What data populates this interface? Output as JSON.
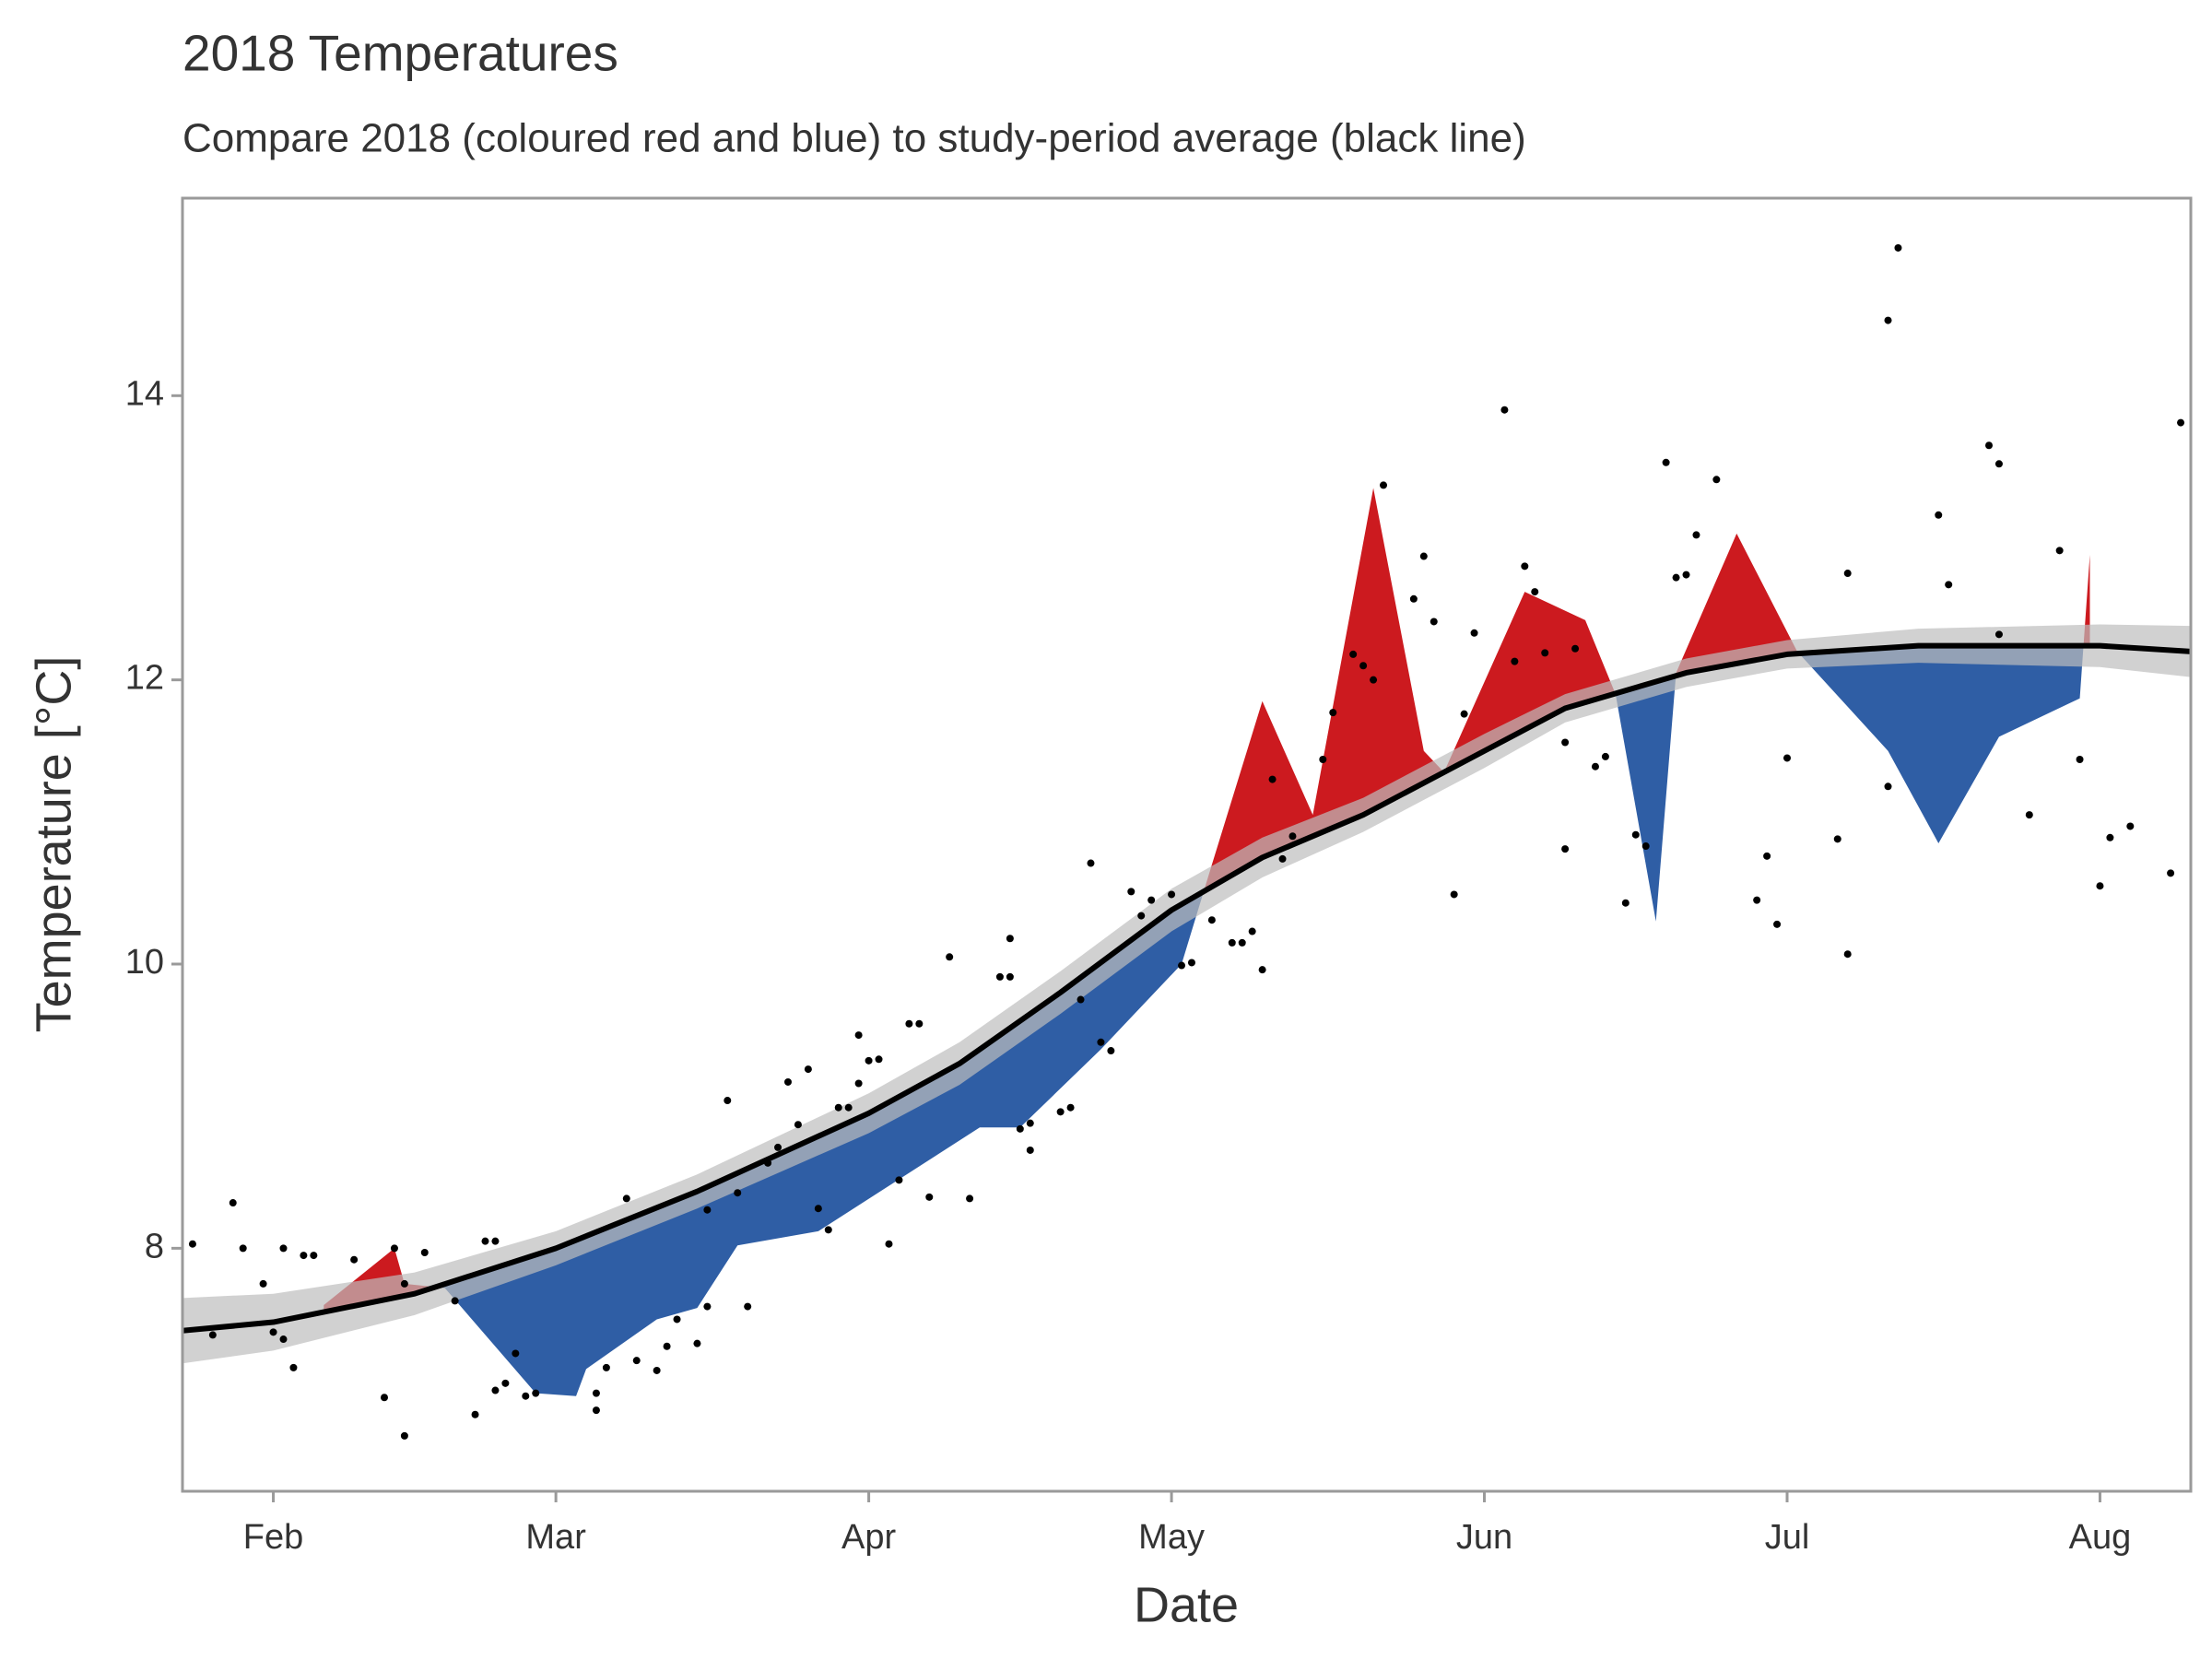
{
  "chart_data": {
    "type": "line",
    "title": "2018 Temperatures",
    "subtitle": "Compare 2018 (coloured red and blue) to study-period average (black line)",
    "x_label": "Date",
    "y_label": "Temperature [°C]",
    "xlim": [
      23,
      222
    ],
    "ylim": [
      6.29,
      15.39
    ],
    "xticks": [
      {
        "value": 32,
        "label": "Feb"
      },
      {
        "value": 60,
        "label": "Mar"
      },
      {
        "value": 91,
        "label": "Apr"
      },
      {
        "value": 121,
        "label": "May"
      },
      {
        "value": 152,
        "label": "Jun"
      },
      {
        "value": 182,
        "label": "Jul"
      },
      {
        "value": 213,
        "label": "Aug"
      }
    ],
    "yticks": [
      8,
      10,
      12,
      14
    ],
    "above_color": "#cc1a1f",
    "below_color": "#2f5ea5",
    "ribbon_color": "#bdbdbd",
    "average": {
      "color": "#000000",
      "x": [
        23,
        32,
        46,
        60,
        74,
        91,
        100,
        110,
        121,
        130,
        140,
        152,
        160,
        172,
        182,
        195,
        213,
        222
      ],
      "values": [
        7.42,
        7.48,
        7.68,
        8.0,
        8.4,
        8.95,
        9.3,
        9.8,
        10.38,
        10.75,
        11.05,
        11.5,
        11.8,
        12.05,
        12.18,
        12.24,
        12.24,
        12.2
      ],
      "lower": [
        7.19,
        7.28,
        7.53,
        7.88,
        8.28,
        8.81,
        9.15,
        9.65,
        10.23,
        10.61,
        10.93,
        11.38,
        11.7,
        11.95,
        12.08,
        12.12,
        12.09,
        12.02
      ],
      "upper": [
        7.65,
        7.68,
        7.83,
        8.12,
        8.52,
        9.09,
        9.45,
        9.95,
        10.53,
        10.89,
        11.17,
        11.62,
        11.9,
        12.15,
        12.28,
        12.36,
        12.39,
        12.38
      ]
    },
    "year_2018": {
      "x": [
        37,
        44,
        45,
        49,
        58,
        62,
        63,
        70,
        74,
        78,
        86,
        102,
        106,
        114,
        122,
        125,
        130,
        135,
        141,
        146,
        148,
        156,
        162,
        165,
        169,
        171,
        177,
        183,
        192,
        197,
        203,
        211,
        212
      ],
      "values": [
        7.6,
        8.0,
        7.75,
        7.72,
        6.98,
        6.96,
        7.15,
        7.5,
        7.58,
        8.02,
        8.12,
        8.85,
        8.85,
        9.4,
        10.0,
        10.7,
        11.85,
        11.05,
        13.35,
        11.5,
        11.35,
        12.62,
        12.42,
        11.9,
        10.3,
        12.05,
        13.03,
        12.2,
        11.5,
        10.85,
        11.6,
        11.87,
        12.88
      ]
    },
    "points": {
      "color": "#000000",
      "x": [
        24,
        26,
        28,
        29,
        31,
        32,
        33,
        33,
        34,
        35,
        36,
        40,
        43,
        44,
        45,
        45,
        47,
        50,
        52,
        53,
        54,
        54,
        55,
        56,
        57,
        58,
        64,
        64,
        65,
        67,
        68,
        70,
        71,
        72,
        74,
        75,
        75,
        77,
        78,
        79,
        81,
        82,
        83,
        84,
        85,
        86,
        87,
        88,
        89,
        90,
        91,
        90,
        92,
        93,
        94,
        95,
        96,
        97,
        99,
        101,
        104,
        105,
        105,
        106,
        107,
        107,
        110,
        111,
        112,
        113,
        114,
        115,
        117,
        118,
        119,
        121,
        122,
        123,
        125,
        127,
        128,
        129,
        130,
        131,
        132,
        133,
        136,
        137,
        139,
        140,
        141,
        142,
        145,
        146,
        147,
        149,
        150,
        151,
        154,
        155,
        156,
        157,
        158,
        160,
        160,
        161,
        163,
        164,
        166,
        167,
        168,
        170,
        171,
        172,
        173,
        175,
        179,
        180,
        181,
        182,
        187,
        188,
        188,
        192,
        192,
        193,
        197,
        198,
        202,
        203,
        203,
        206,
        209,
        211,
        213,
        214,
        216,
        220,
        221
      ],
      "values": [
        8.03,
        7.39,
        8.32,
        8.0,
        7.75,
        7.41,
        8.0,
        7.36,
        7.16,
        7.95,
        7.95,
        7.92,
        6.95,
        8.0,
        6.68,
        7.75,
        7.97,
        7.63,
        6.83,
        8.05,
        8.05,
        7.0,
        7.05,
        7.26,
        6.96,
        6.98,
        6.98,
        6.86,
        7.16,
        8.35,
        7.21,
        7.14,
        7.31,
        7.5,
        7.33,
        8.27,
        7.59,
        9.04,
        8.39,
        7.59,
        8.6,
        8.71,
        9.17,
        8.87,
        9.26,
        8.28,
        8.13,
        8.99,
        8.99,
        9.5,
        9.32,
        9.16,
        9.33,
        8.03,
        8.48,
        9.58,
        9.58,
        8.36,
        10.05,
        8.35,
        9.91,
        9.91,
        10.18,
        8.84,
        8.88,
        8.69,
        8.96,
        8.99,
        9.75,
        10.71,
        9.45,
        9.39,
        10.51,
        10.34,
        10.45,
        10.49,
        9.99,
        10.01,
        10.31,
        10.15,
        10.15,
        10.23,
        9.96,
        11.3,
        10.74,
        10.9,
        11.44,
        11.77,
        12.18,
        12.1,
        12.0,
        13.37,
        12.57,
        12.87,
        12.41,
        10.49,
        11.76,
        12.33,
        13.9,
        12.13,
        12.8,
        12.62,
        12.19,
        11.56,
        10.81,
        12.22,
        11.39,
        11.46,
        10.43,
        10.91,
        10.83,
        13.53,
        12.72,
        12.74,
        13.02,
        13.41,
        10.45,
        10.76,
        10.28,
        11.45,
        10.88,
        12.75,
        10.07,
        14.53,
        11.25,
        15.04,
        13.16,
        12.67,
        13.65,
        13.52,
        12.32,
        11.05,
        12.91,
        11.44,
        10.55,
        10.89,
        10.97,
        10.64,
        13.81
      ]
    }
  }
}
